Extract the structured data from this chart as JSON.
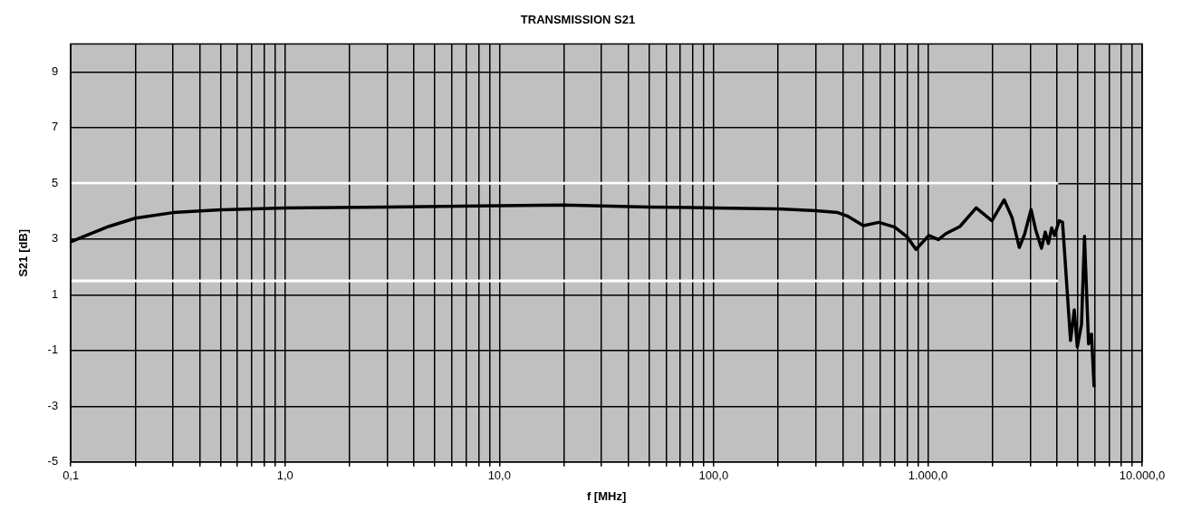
{
  "chart_data": {
    "type": "line",
    "title": "TRANSMISSION S21",
    "xlabel": "f [MHz]",
    "ylabel": "S21 [dB]",
    "log": "x",
    "xlim": [
      0.1,
      10000
    ],
    "xticks": [
      {
        "value": 0.1,
        "label": "0,1"
      },
      {
        "value": 0.2,
        "label": null
      },
      {
        "value": 0.3,
        "label": null
      },
      {
        "value": 0.4,
        "label": null
      },
      {
        "value": 0.5,
        "label": null
      },
      {
        "value": 0.6,
        "label": null
      },
      {
        "value": 0.7,
        "label": null
      },
      {
        "value": 0.8,
        "label": null
      },
      {
        "value": 0.9,
        "label": null
      },
      {
        "value": 1,
        "label": "1,0"
      },
      {
        "value": 2,
        "label": null
      },
      {
        "value": 3,
        "label": null
      },
      {
        "value": 4,
        "label": null
      },
      {
        "value": 5,
        "label": null
      },
      {
        "value": 6,
        "label": null
      },
      {
        "value": 7,
        "label": null
      },
      {
        "value": 8,
        "label": null
      },
      {
        "value": 9,
        "label": null
      },
      {
        "value": 10,
        "label": "10,0"
      },
      {
        "value": 20,
        "label": null
      },
      {
        "value": 30,
        "label": null
      },
      {
        "value": 40,
        "label": null
      },
      {
        "value": 50,
        "label": null
      },
      {
        "value": 60,
        "label": null
      },
      {
        "value": 70,
        "label": null
      },
      {
        "value": 80,
        "label": null
      },
      {
        "value": 90,
        "label": null
      },
      {
        "value": 100,
        "label": "100,0"
      },
      {
        "value": 200,
        "label": null
      },
      {
        "value": 300,
        "label": null
      },
      {
        "value": 400,
        "label": null
      },
      {
        "value": 500,
        "label": null
      },
      {
        "value": 600,
        "label": null
      },
      {
        "value": 700,
        "label": null
      },
      {
        "value": 800,
        "label": null
      },
      {
        "value": 900,
        "label": null
      },
      {
        "value": 1000,
        "label": "1.000,0"
      },
      {
        "value": 2000,
        "label": null
      },
      {
        "value": 3000,
        "label": null
      },
      {
        "value": 4000,
        "label": null
      },
      {
        "value": 5000,
        "label": null
      },
      {
        "value": 6000,
        "label": null
      },
      {
        "value": 7000,
        "label": null
      },
      {
        "value": 8000,
        "label": null
      },
      {
        "value": 9000,
        "label": null
      },
      {
        "value": 10000,
        "label": "10.000,0"
      }
    ],
    "ylim": [
      -5,
      10
    ],
    "yticks": [
      -5,
      -3,
      -1,
      1,
      3,
      5,
      7,
      9
    ],
    "grid": true,
    "legend": false,
    "marker": "none",
    "line_style": "solid",
    "series": [
      {
        "color": "#ffffff",
        "x": [
          0.1,
          4000
        ],
        "values": [
          5,
          5
        ]
      },
      {
        "color": "#ffffff",
        "x": [
          0.1,
          4000
        ],
        "values": [
          1.5,
          1.5
        ]
      },
      {
        "color": "#000000",
        "x": [
          0.1,
          0.12,
          0.15,
          0.2,
          0.3,
          0.5,
          1,
          3,
          10,
          20,
          50,
          100,
          200,
          300,
          380,
          420,
          500,
          590,
          700,
          800,
          880,
          1010,
          1120,
          1210,
          1410,
          1680,
          1990,
          2270,
          2470,
          2670,
          2830,
          3030,
          3190,
          3390,
          3530,
          3650,
          3780,
          3900,
          4100,
          4250,
          4630,
          4820,
          4980,
          5210,
          5380,
          5620,
          5800,
          5960
        ],
        "values": [
          2.9,
          3.15,
          3.45,
          3.75,
          3.95,
          4.05,
          4.12,
          4.15,
          4.2,
          4.22,
          4.15,
          4.12,
          4.08,
          4.02,
          3.95,
          3.83,
          3.48,
          3.6,
          3.43,
          3.08,
          2.63,
          3.13,
          2.98,
          3.19,
          3.45,
          4.12,
          3.66,
          4.41,
          3.77,
          2.7,
          3.19,
          4.06,
          3.31,
          2.67,
          3.25,
          2.84,
          3.4,
          3.13,
          3.66,
          3.6,
          -0.64,
          0.46,
          -0.87,
          -0.06,
          3.1,
          -0.76,
          -0.41,
          -2.27
        ]
      }
    ]
  }
}
